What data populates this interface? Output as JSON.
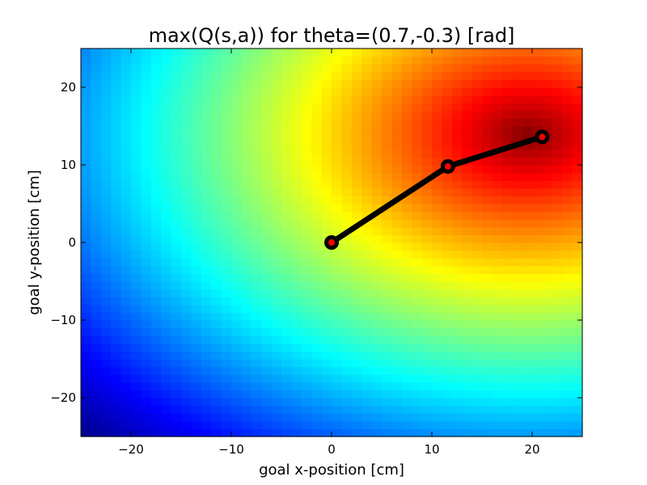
{
  "chart_data": {
    "type": "heatmap",
    "title": "max(Q(s,a)) for theta=(0.7,-0.3) [rad]",
    "xlabel": "goal x-position [cm]",
    "ylabel": "goal y-position [cm]",
    "xlim": [
      -25,
      25
    ],
    "ylim": [
      -25,
      25
    ],
    "x_ticks": [
      -20,
      -10,
      0,
      10,
      20
    ],
    "y_ticks": [
      -20,
      -10,
      0,
      10,
      20
    ],
    "x_tick_labels": [
      "−20",
      "−10",
      "0",
      "10",
      "20"
    ],
    "y_tick_labels": [
      "−20",
      "−10",
      "0",
      "10",
      "20"
    ],
    "grid": false,
    "colormap": "jet",
    "heatmap_grid": {
      "nx": 50,
      "ny": 50,
      "peak": [
        19.5,
        14.0
      ],
      "peak_value": 1.0,
      "min_value": 0.0
    },
    "arm": {
      "joints_x": [
        0,
        11.6,
        21.0
      ],
      "joints_y": [
        0,
        9.8,
        13.6
      ],
      "line_color": "#000000",
      "joint_marker_color": "#ff0000"
    }
  }
}
